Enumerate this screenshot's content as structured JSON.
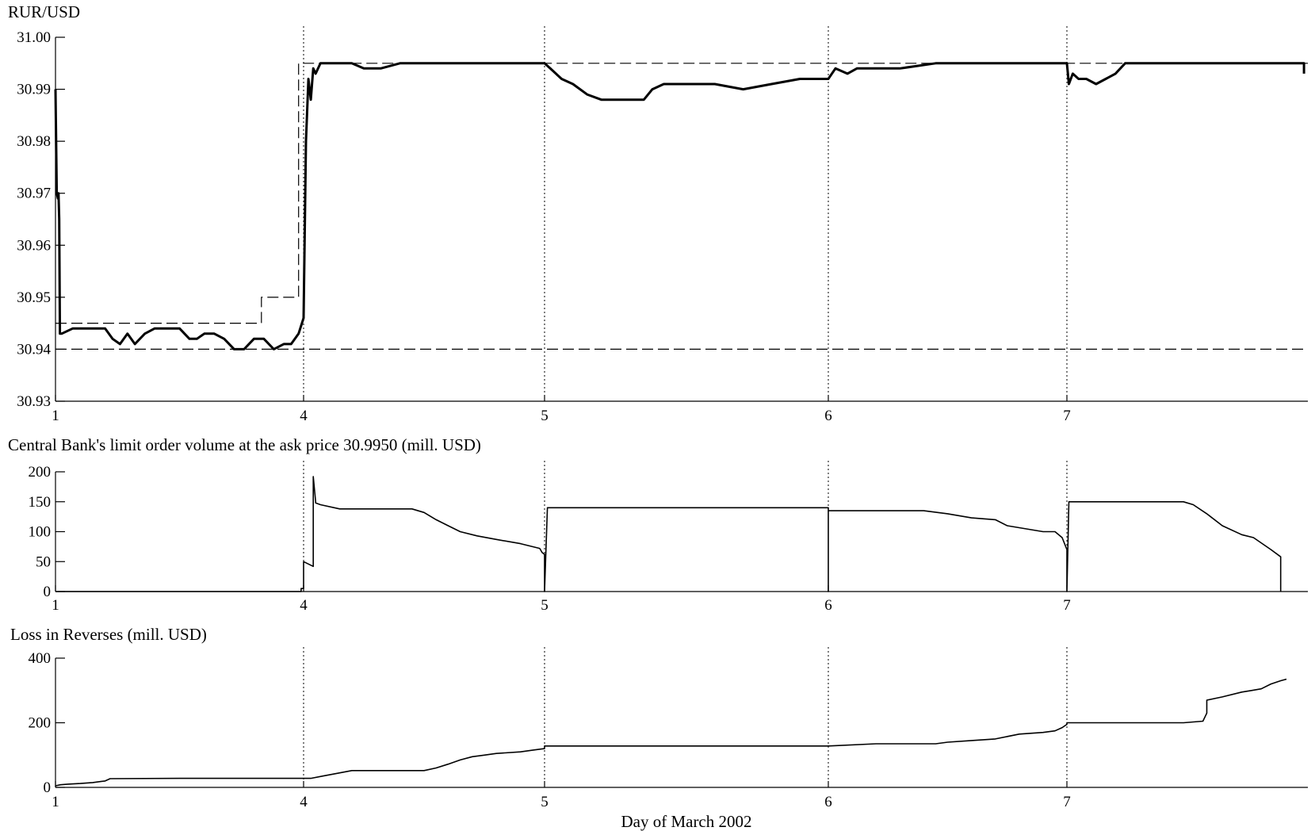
{
  "x_axis_label": "Day of March 2002",
  "colors": {
    "line": "#000000",
    "background": "#ffffff"
  },
  "chart_data": [
    {
      "type": "line",
      "ylabel": "RUR/USD",
      "ylim": [
        30.93,
        31.0
      ],
      "yticks": [
        "31.00",
        "30.99",
        "30.98",
        "30.97",
        "30.96",
        "30.95",
        "30.94",
        "30.93"
      ],
      "xticks": [
        {
          "label": "1",
          "pos": 0
        },
        {
          "label": "4",
          "pos": 1
        },
        {
          "label": "5",
          "pos": 2
        },
        {
          "label": "6",
          "pos": 3
        },
        {
          "label": "7",
          "pos": 4
        }
      ],
      "xlim": [
        0,
        5.24
      ],
      "day_separators": [
        1,
        2,
        3,
        4
      ],
      "series": [
        {
          "style": "solid-thick",
          "x": [
            0,
            0.005,
            0.01,
            0.012,
            0.015,
            0.018,
            0.025,
            0.07,
            0.2,
            0.23,
            0.26,
            0.29,
            0.32,
            0.36,
            0.4,
            0.45,
            0.5,
            0.54,
            0.57,
            0.6,
            0.64,
            0.68,
            0.72,
            0.76,
            0.8,
            0.84,
            0.88,
            0.92,
            0.95,
            0.98,
            1.0,
            1.01,
            1.02,
            1.03,
            1.04,
            1.05,
            1.07,
            1.1,
            1.2,
            1.25,
            1.32,
            1.4,
            1.5,
            1.7,
            1.9,
            1.96,
            2.0,
            2.02,
            2.06,
            2.1,
            2.15,
            2.2,
            2.25,
            2.3,
            2.35,
            2.38,
            2.42,
            2.5,
            2.6,
            2.7,
            2.8,
            2.9,
            2.96,
            3.0,
            3.03,
            3.08,
            3.12,
            3.2,
            3.3,
            3.45,
            3.6,
            3.8,
            3.95,
            4.0,
            4.01,
            4.03,
            4.06,
            4.1,
            4.15,
            4.2,
            4.25,
            4.3,
            4.35,
            4.4,
            4.45,
            4.5,
            4.55,
            4.6,
            4.7,
            4.8,
            4.9,
            5.0,
            5.1,
            5.2,
            5.22,
            5.22
          ],
          "y": [
            30.99,
            30.97,
            30.969,
            30.97,
            30.965,
            30.943,
            30.943,
            30.944,
            30.944,
            30.942,
            30.941,
            30.943,
            30.941,
            30.943,
            30.944,
            30.944,
            30.944,
            30.942,
            30.942,
            30.943,
            30.943,
            30.942,
            30.94,
            30.94,
            30.942,
            30.942,
            30.94,
            30.941,
            30.941,
            30.943,
            30.946,
            30.98,
            30.992,
            30.988,
            30.994,
            30.993,
            30.995,
            30.995,
            30.995,
            30.994,
            30.994,
            30.995,
            30.995,
            30.995,
            30.995,
            30.995,
            30.995,
            30.994,
            30.992,
            30.991,
            30.989,
            30.988,
            30.988,
            30.988,
            30.988,
            30.99,
            30.991,
            30.991,
            30.991,
            30.99,
            30.991,
            30.992,
            30.992,
            30.992,
            30.994,
            30.993,
            30.994,
            30.994,
            30.994,
            30.995,
            30.995,
            30.995,
            30.995,
            30.995,
            30.991,
            30.993,
            30.992,
            30.992,
            30.991,
            30.992,
            30.993,
            30.995,
            30.995,
            30.995,
            30.995,
            30.995,
            30.995,
            30.995,
            30.995,
            30.995,
            30.995,
            30.995,
            30.995,
            30.995,
            30.995,
            30.993
          ]
        },
        {
          "style": "dashed",
          "x": [
            0,
            0.83,
            0.83,
            0.98,
            0.98,
            5.24
          ],
          "y": [
            30.945,
            30.945,
            30.95,
            30.95,
            30.995,
            30.995
          ]
        },
        {
          "style": "dashed",
          "x": [
            0,
            5.24
          ],
          "y": [
            30.94,
            30.94
          ]
        }
      ]
    },
    {
      "type": "line",
      "title": "Central Bank's limit order volume at the ask price 30.9950 (mill. USD)",
      "ylim": [
        0,
        200
      ],
      "yticks": [
        "200",
        "150",
        "100",
        "50",
        "0"
      ],
      "xticks": [
        {
          "label": "1",
          "pos": 0
        },
        {
          "label": "4",
          "pos": 1
        },
        {
          "label": "5",
          "pos": 2
        },
        {
          "label": "6",
          "pos": 3
        },
        {
          "label": "7",
          "pos": 4
        }
      ],
      "xlim": [
        0,
        5.24
      ],
      "day_separators": [
        1,
        2,
        3,
        4
      ],
      "series": [
        {
          "style": "solid",
          "x": [
            0,
            0.99,
            0.99,
            1.0,
            1.0,
            1.04,
            1.04,
            1.05,
            1.05,
            1.07,
            1.15,
            1.45,
            1.5,
            1.55,
            1.6,
            1.65,
            1.72,
            1.8,
            1.9,
            1.98,
            1.99,
            2.0,
            2.0,
            2.01,
            3.0,
            3.0,
            3.0,
            3.4,
            3.5,
            3.6,
            3.7,
            3.75,
            3.9,
            3.95,
            3.98,
            3.99,
            4.0,
            4.0,
            4.01,
            4.6,
            4.65,
            4.72,
            4.8,
            4.9,
            4.96,
            5.05,
            5.1,
            5.1,
            5.1
          ],
          "y": [
            0,
            0,
            5,
            5,
            50,
            42,
            192,
            150,
            148,
            145,
            138,
            138,
            132,
            120,
            110,
            100,
            93,
            87,
            80,
            72,
            65,
            62,
            0,
            140,
            140,
            0,
            135,
            135,
            130,
            123,
            120,
            110,
            100,
            100,
            90,
            80,
            70,
            0,
            150,
            150,
            145,
            130,
            110,
            95,
            90,
            70,
            58,
            55,
            0
          ]
        }
      ]
    },
    {
      "type": "line",
      "ylabel": "Loss in Reverses (mill. USD)",
      "xlabel": "Day of March 2002",
      "ylim": [
        0,
        400
      ],
      "yticks": [
        "400",
        "200",
        "0"
      ],
      "xticks": [
        {
          "label": "1",
          "pos": 0
        },
        {
          "label": "4",
          "pos": 1
        },
        {
          "label": "5",
          "pos": 2
        },
        {
          "label": "6",
          "pos": 3
        },
        {
          "label": "7",
          "pos": 4
        }
      ],
      "xlim": [
        0,
        5.24
      ],
      "day_separators": [
        1,
        2,
        3,
        4
      ],
      "series": [
        {
          "style": "solid",
          "x": [
            0,
            0.02,
            0.05,
            0.1,
            0.15,
            0.2,
            0.22,
            0.5,
            0.8,
            1.0,
            1.03,
            1.08,
            1.15,
            1.2,
            1.3,
            1.4,
            1.5,
            1.55,
            1.6,
            1.65,
            1.7,
            1.75,
            1.8,
            1.9,
            1.95,
            2.0,
            2.0,
            2.5,
            3.0,
            3.0,
            3.2,
            3.45,
            3.5,
            3.6,
            3.7,
            3.8,
            3.9,
            3.95,
            3.98,
            4.0,
            4.0,
            4.6,
            4.7,
            4.72,
            4.72,
            4.8,
            4.9,
            4.95,
            5.0,
            5.05,
            5.1,
            5.13
          ],
          "y": [
            5,
            8,
            10,
            12,
            15,
            20,
            27,
            28,
            28,
            28,
            28,
            35,
            45,
            52,
            52,
            52,
            52,
            60,
            72,
            85,
            95,
            100,
            105,
            110,
            115,
            120,
            128,
            128,
            128,
            128,
            135,
            135,
            140,
            145,
            150,
            165,
            170,
            175,
            185,
            195,
            200,
            200,
            205,
            230,
            270,
            280,
            295,
            300,
            305,
            320,
            330,
            335
          ]
        }
      ]
    }
  ]
}
